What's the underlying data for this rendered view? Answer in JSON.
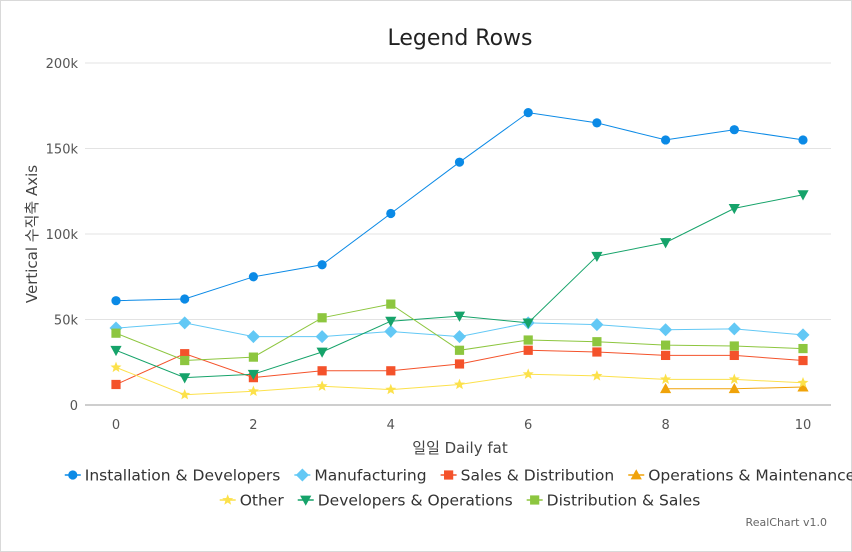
{
  "chart_data": {
    "type": "line",
    "title": "Legend Rows",
    "xlabel": "일일 Daily fat",
    "ylabel": "Vertical 수직축 Axis",
    "xlim": [
      0,
      10
    ],
    "ylim": [
      0,
      200000
    ],
    "x_ticks": [
      0,
      2,
      4,
      6,
      8,
      10
    ],
    "y_ticks": [
      0,
      50000,
      100000,
      150000,
      200000
    ],
    "y_tick_labels": [
      "0",
      "50k",
      "100k",
      "150k",
      "200k"
    ],
    "grid": "horizontal",
    "legend_position": "bottom",
    "series": [
      {
        "name": "Installation & Developers",
        "color": "#0b8ae6",
        "marker": "circle",
        "x": [
          0,
          1,
          2,
          3,
          4,
          5,
          6,
          7,
          8,
          9,
          10
        ],
        "values": [
          61000,
          62000,
          75000,
          82000,
          112000,
          142000,
          171000,
          165000,
          155000,
          161000,
          155000
        ]
      },
      {
        "name": "Manufacturing",
        "color": "#62c8f5",
        "marker": "diamond",
        "x": [
          0,
          1,
          2,
          3,
          4,
          5,
          6,
          7,
          8,
          9,
          10
        ],
        "values": [
          45000,
          48000,
          40000,
          40000,
          43000,
          40000,
          48000,
          47000,
          44000,
          44500,
          41000
        ]
      },
      {
        "name": "Sales & Distribution",
        "color": "#f4522b",
        "marker": "square",
        "x": [
          0,
          1,
          2,
          3,
          4,
          5,
          6,
          7,
          8,
          9,
          10
        ],
        "values": [
          12000,
          30000,
          16000,
          20000,
          20000,
          24000,
          32000,
          31000,
          29000,
          29000,
          26000
        ]
      },
      {
        "name": "Operations & Maintenance",
        "color": "#f0a30a",
        "marker": "triangle",
        "x": [
          8,
          9,
          10
        ],
        "values": [
          9500,
          9500,
          10500
        ]
      },
      {
        "name": "Other",
        "color": "#fce14b",
        "marker": "star",
        "x": [
          0,
          1,
          2,
          3,
          4,
          5,
          6,
          7,
          8,
          9,
          10
        ],
        "values": [
          22000,
          6000,
          8000,
          11000,
          9000,
          12000,
          18000,
          17000,
          15000,
          15000,
          13000
        ]
      },
      {
        "name": "Developers & Operations",
        "color": "#16a36a",
        "marker": "triangle-down",
        "x": [
          0,
          1,
          2,
          3,
          4,
          5,
          6,
          7,
          8,
          9,
          10
        ],
        "values": [
          32000,
          16000,
          18000,
          31000,
          49000,
          52000,
          48000,
          87000,
          95000,
          115000,
          123000
        ]
      },
      {
        "name": "Distribution & Sales",
        "color": "#8dc63f",
        "marker": "square",
        "x": [
          0,
          1,
          2,
          3,
          4,
          5,
          6,
          7,
          8,
          9,
          10
        ],
        "values": [
          42000,
          26000,
          28000,
          51000,
          59000,
          32000,
          38000,
          37000,
          35000,
          34500,
          33000
        ]
      }
    ]
  },
  "credit": "RealChart v1.0"
}
